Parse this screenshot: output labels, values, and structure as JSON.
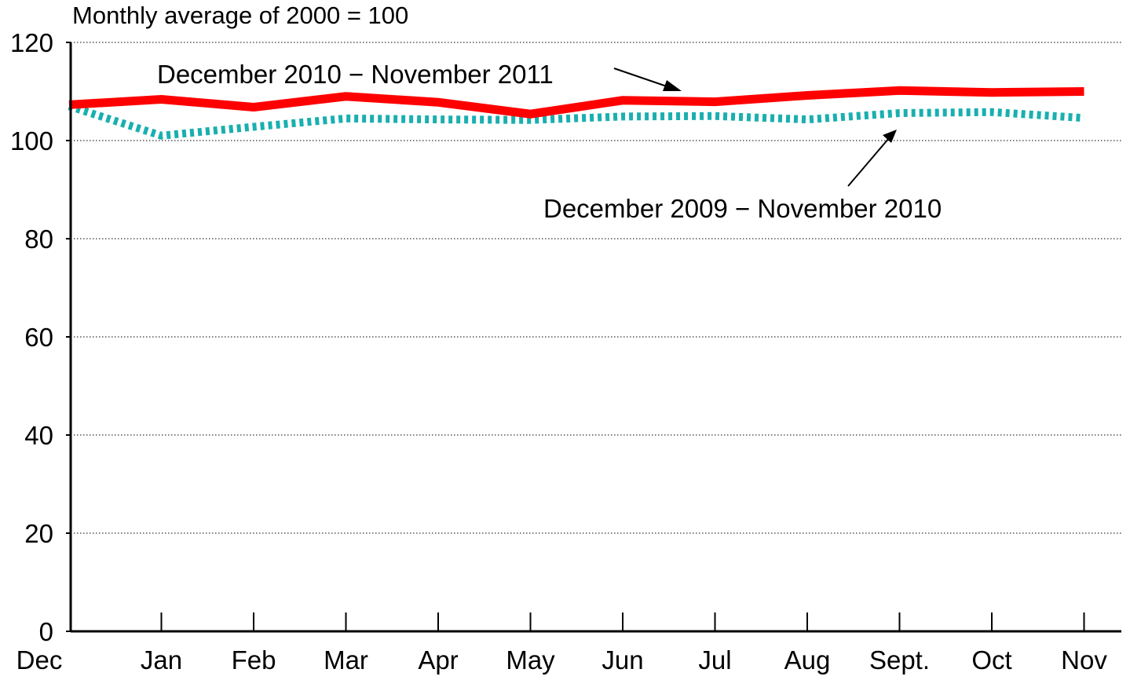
{
  "chart_data": {
    "type": "line",
    "ylabel": "Monthly average of 2000 = 100",
    "ylim": [
      0,
      120
    ],
    "yticks": [
      0,
      20,
      40,
      60,
      80,
      100,
      120
    ],
    "categories": [
      "Dec",
      "Jan",
      "Feb",
      "Mar",
      "Apr",
      "May",
      "Jun",
      "Jul",
      "Aug",
      "Sept.",
      "Oct",
      "Nov"
    ],
    "grid": "horizontal dotted",
    "series": [
      {
        "name": "December 2010 − November 2011",
        "color": "#ff0000",
        "style": "solid",
        "values": [
          107.3,
          108.4,
          106.8,
          109.0,
          107.8,
          105.4,
          108.2,
          107.9,
          109.2,
          110.2,
          109.8,
          110.0
        ]
      },
      {
        "name": "December 2009 − November 2010",
        "color": "#1aafaf",
        "style": "dotted",
        "values": [
          107.0,
          101.0,
          102.8,
          104.5,
          104.3,
          104.2,
          104.9,
          105.0,
          104.3,
          105.6,
          105.8,
          104.6
        ]
      }
    ]
  }
}
